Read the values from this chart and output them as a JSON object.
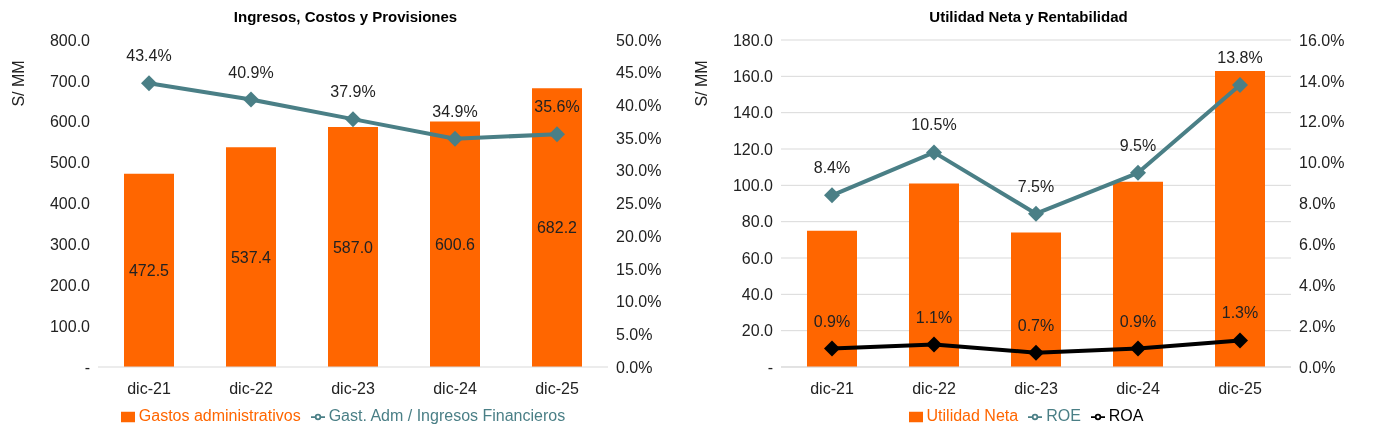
{
  "chart_data": [
    {
      "type": "bar",
      "title": "Ingresos, Costos y Provisiones",
      "ylabel": "S/ MM",
      "categories": [
        "dic-21",
        "dic-22",
        "dic-23",
        "dic-24",
        "dic-25"
      ],
      "series": [
        {
          "name": "Gastos administrativos",
          "color": "#ff6600",
          "values": [
            472.5,
            537.4,
            587.0,
            600.6,
            682.2
          ],
          "value_labels": [
            "472.5",
            "537.4",
            "587.0",
            "600.6",
            "682.2"
          ]
        },
        {
          "name": "Gast. Adm / Ingresos Financieros",
          "type": "line",
          "axis": "y2",
          "color": "#4a7f86",
          "values": [
            43.4,
            40.9,
            37.9,
            34.9,
            35.6
          ],
          "value_labels": [
            "43.4%",
            "40.9%",
            "37.9%",
            "34.9%",
            "35.6%"
          ]
        }
      ],
      "ylim": [
        0,
        800
      ],
      "yticks": [
        {
          "value": 0,
          "label": "-"
        },
        {
          "value": 100,
          "label": "100.0"
        },
        {
          "value": 200,
          "label": "200.0"
        },
        {
          "value": 300,
          "label": "300.0"
        },
        {
          "value": 400,
          "label": "400.0"
        },
        {
          "value": 500,
          "label": "500.0"
        },
        {
          "value": 600,
          "label": "600.0"
        },
        {
          "value": 700,
          "label": "700.0"
        },
        {
          "value": 800,
          "label": "800.0"
        }
      ],
      "y2lim": [
        0,
        50
      ],
      "y2ticks": [
        {
          "value": 0,
          "label": "0.0%"
        },
        {
          "value": 5,
          "label": "5.0%"
        },
        {
          "value": 10,
          "label": "10.0%"
        },
        {
          "value": 15,
          "label": "15.0%"
        },
        {
          "value": 20,
          "label": "20.0%"
        },
        {
          "value": 25,
          "label": "25.0%"
        },
        {
          "value": 30,
          "label": "30.0%"
        },
        {
          "value": 35,
          "label": "35.0%"
        },
        {
          "value": 40,
          "label": "40.0%"
        },
        {
          "value": 45,
          "label": "45.0%"
        },
        {
          "value": 50,
          "label": "50.0%"
        }
      ],
      "grid": false,
      "legend": "bottom",
      "marker": "diamond",
      "line_style": "solid"
    },
    {
      "type": "bar",
      "title": "Utilidad Neta y Rentabilidad",
      "ylabel": "S/ MM",
      "categories": [
        "dic-21",
        "dic-22",
        "dic-23",
        "dic-24",
        "dic-25"
      ],
      "series": [
        {
          "name": "Utilidad Neta",
          "color": "#ff6600",
          "values": [
            75,
            101,
            74,
            102,
            163
          ]
        },
        {
          "name": "ROE",
          "type": "line",
          "axis": "y2",
          "color": "#4a7f86",
          "values": [
            8.4,
            10.5,
            7.5,
            9.5,
            13.8
          ],
          "value_labels": [
            "8.4%",
            "10.5%",
            "7.5%",
            "9.5%",
            "13.8%"
          ]
        },
        {
          "name": "ROA",
          "type": "line",
          "axis": "y2",
          "color": "#000000",
          "values": [
            0.9,
            1.1,
            0.7,
            0.9,
            1.3
          ],
          "value_labels": [
            "0.9%",
            "1.1%",
            "0.7%",
            "0.9%",
            "1.3%"
          ]
        }
      ],
      "ylim": [
        0,
        180
      ],
      "yticks": [
        {
          "value": 0,
          "label": "-"
        },
        {
          "value": 20,
          "label": "20.0"
        },
        {
          "value": 40,
          "label": "40.0"
        },
        {
          "value": 60,
          "label": "60.0"
        },
        {
          "value": 80,
          "label": "80.0"
        },
        {
          "value": 100,
          "label": "100.0"
        },
        {
          "value": 120,
          "label": "120.0"
        },
        {
          "value": 140,
          "label": "140.0"
        },
        {
          "value": 160,
          "label": "160.0"
        },
        {
          "value": 180,
          "label": "180.0"
        }
      ],
      "y2lim": [
        0,
        16
      ],
      "y2ticks": [
        {
          "value": 0,
          "label": "0.0%"
        },
        {
          "value": 2,
          "label": "2.0%"
        },
        {
          "value": 4,
          "label": "4.0%"
        },
        {
          "value": 6,
          "label": "6.0%"
        },
        {
          "value": 8,
          "label": "8.0%"
        },
        {
          "value": 10,
          "label": "10.0%"
        },
        {
          "value": 12,
          "label": "12.0%"
        },
        {
          "value": 14,
          "label": "14.0%"
        },
        {
          "value": 16,
          "label": "16.0%"
        }
      ],
      "grid": "y",
      "legend": "bottom",
      "marker": "diamond",
      "line_style": "solid"
    }
  ]
}
